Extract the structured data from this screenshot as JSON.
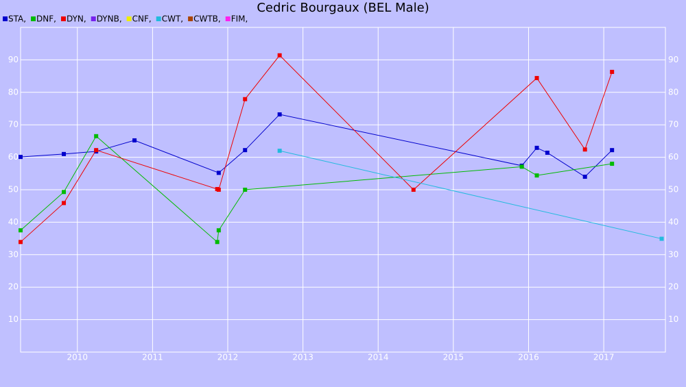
{
  "chart_data": {
    "type": "line",
    "title": "Cedric Bourgaux (BEL Male)",
    "xlim": [
      2009.245,
      2017.82
    ],
    "xticks": [
      2010,
      2011,
      2012,
      2013,
      2014,
      2015,
      2016,
      2017
    ],
    "ylim": [
      0,
      100
    ],
    "yticks": [
      10,
      20,
      30,
      40,
      50,
      60,
      70,
      80,
      90
    ],
    "grid": true,
    "series": [
      {
        "name": "STA,",
        "color": "#0000cc",
        "x": [
          2009.245,
          2009.82,
          2010.25,
          2010.76,
          2011.88,
          2012.23,
          2012.69,
          2015.91,
          2016.11,
          2016.25,
          2016.75,
          2017.11
        ],
        "values": [
          60.1,
          61,
          61.8,
          65.2,
          55.2,
          62.2,
          73.2,
          57.4,
          62.9,
          61.4,
          54,
          62.2
        ]
      },
      {
        "name": "DNF,",
        "color": "#00bb00",
        "x": [
          2009.245,
          2009.82,
          2010.25,
          2011.86,
          2011.88,
          2012.23,
          2015.91,
          2016.11,
          2017.11
        ],
        "values": [
          37.5,
          49.3,
          66.5,
          33.9,
          37.5,
          50,
          57.1,
          54.4,
          58
        ]
      },
      {
        "name": "DYN,",
        "color": "#ee0000",
        "x": [
          2009.245,
          2009.82,
          2010.25,
          2011.86,
          2011.88,
          2012.23,
          2012.69,
          2014.47,
          2016.11,
          2016.75,
          2017.11
        ],
        "values": [
          33.9,
          45.9,
          62.2,
          50.2,
          50,
          77.9,
          91.4,
          50,
          84.4,
          62.4,
          86.3
        ]
      },
      {
        "name": "DYNB,",
        "color": "#7722ee",
        "x": [],
        "values": []
      },
      {
        "name": "CNF,",
        "color": "#eeee00",
        "x": [],
        "values": []
      },
      {
        "name": "CWT,",
        "color": "#22bbdd",
        "x": [
          2012.69,
          2017.77
        ],
        "values": [
          62,
          34.9
        ]
      },
      {
        "name": "CWTB,",
        "color": "#aa4400",
        "x": [],
        "values": []
      },
      {
        "name": "FIM,",
        "color": "#ff22ee",
        "x": [],
        "values": []
      }
    ]
  }
}
